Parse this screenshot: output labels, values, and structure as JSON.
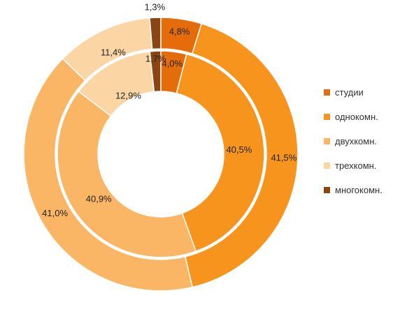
{
  "chart_data": {
    "type": "donut",
    "categories": [
      "студии",
      "однокомн.",
      "двухкомн.",
      "трехкомн.",
      "многокомн."
    ],
    "colors": [
      "#E46C0A",
      "#F7941D",
      "#FAB565",
      "#FCD5A5",
      "#8B4513"
    ],
    "series": [
      {
        "ring": "outer",
        "values": [
          4.8,
          41.5,
          41.0,
          11.4,
          1.3
        ],
        "labels": [
          "4,8%",
          "41,5%",
          "41,0%",
          "11,4%",
          "1,3%"
        ]
      },
      {
        "ring": "inner",
        "values": [
          4.0,
          40.5,
          40.9,
          12.9,
          1.7
        ],
        "labels": [
          "4,0%",
          "40,5%",
          "40,9%",
          "12,9%",
          "1,7%"
        ]
      }
    ],
    "legend_position": "right"
  }
}
